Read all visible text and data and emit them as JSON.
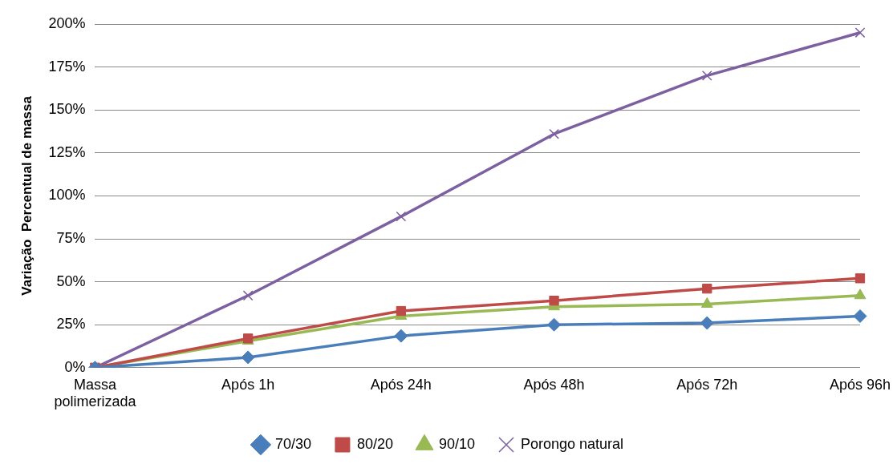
{
  "chart_data": {
    "type": "line",
    "ylabel": "Variação  Percentual de massa",
    "categories": [
      "Massa polimerizada",
      "Após 1h",
      "Após 24h",
      "Após 48h",
      "Após 72h",
      "Após 96h"
    ],
    "series": [
      {
        "name": "70/30",
        "color": "#4a7ebb",
        "marker": "diamond",
        "values": [
          0,
          6,
          18.5,
          25,
          26,
          30
        ]
      },
      {
        "name": "80/20",
        "color": "#be4b48",
        "marker": "square",
        "values": [
          0,
          17,
          33,
          39,
          46,
          52
        ]
      },
      {
        "name": "90/10",
        "color": "#98b954",
        "marker": "triangle",
        "values": [
          0,
          15.5,
          30,
          35.5,
          37,
          42
        ]
      },
      {
        "name": "Porongo natural",
        "color": "#7d60a0",
        "marker": "cross",
        "values": [
          0,
          42,
          88,
          136,
          170,
          195
        ]
      }
    ],
    "ylim": [
      0,
      200
    ],
    "yticks": [
      {
        "value": 0,
        "label": "0%"
      },
      {
        "value": 25,
        "label": "25%"
      },
      {
        "value": 50,
        "label": "50%"
      },
      {
        "value": 75,
        "label": "75%"
      },
      {
        "value": 100,
        "label": "100%"
      },
      {
        "value": 125,
        "label": "125%"
      },
      {
        "value": 150,
        "label": "150%"
      },
      {
        "value": 175,
        "label": "175%"
      },
      {
        "value": 200,
        "label": "200%"
      }
    ],
    "grid": "y",
    "legend": "bottom",
    "line_style": "solid"
  }
}
